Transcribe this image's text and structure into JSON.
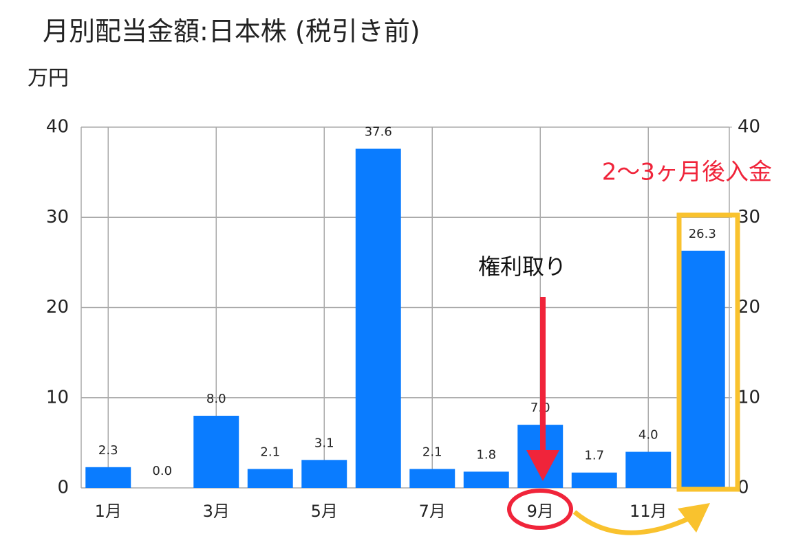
{
  "chart_data": {
    "type": "bar",
    "title": "月別配当金額:日本株 (税引き前)",
    "y_label": "万円",
    "categories": [
      "1月",
      null,
      "3月",
      null,
      "5月",
      null,
      "7月",
      null,
      "9月",
      null,
      "11月",
      null
    ],
    "values": [
      2.3,
      0.0,
      8.0,
      2.1,
      3.1,
      37.6,
      2.1,
      1.8,
      7.0,
      1.7,
      4.0,
      26.3
    ],
    "value_labels": [
      "2.3",
      "0.0",
      "8.0",
      "2.1",
      "3.1",
      "37.6",
      "2.1",
      "1.8",
      "7.0",
      "1.7",
      "4.0",
      "26.3"
    ],
    "color": "#0a7cff",
    "ylim": [
      0,
      40
    ],
    "yticks": [
      0,
      10,
      20,
      30,
      40
    ],
    "y2lim": [
      0,
      40
    ],
    "y2ticks": [
      0,
      10,
      20,
      30,
      40
    ],
    "grid": true,
    "annotations": [
      "2〜3ヶ月後入金",
      "権利取り"
    ]
  }
}
